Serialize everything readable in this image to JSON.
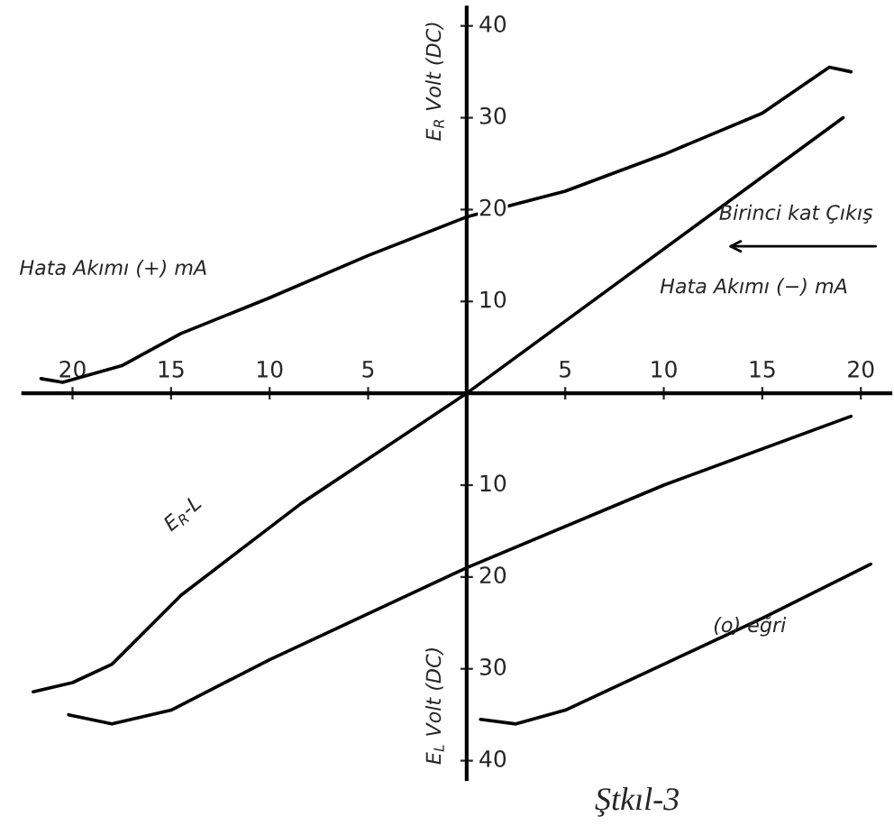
{
  "chart_data": {
    "type": "line",
    "ylabel": "E$_{R}$ Volt (DC)",
    "xlim": [
      -22.5,
      21.5
    ],
    "ylim": [
      -42,
      42
    ],
    "xticks": [
      {
        "value": -20,
        "label": "20"
      },
      {
        "value": -15,
        "label": "15"
      },
      {
        "value": -10,
        "label": "10"
      },
      {
        "value": -5,
        "label": "5"
      },
      5,
      10,
      15,
      20
    ],
    "yticks": [
      {
        "value": -40,
        "label": "40"
      },
      {
        "value": -30,
        "label": "30"
      },
      {
        "value": -20,
        "label": "20"
      },
      {
        "value": -10,
        "label": "10"
      },
      10,
      20,
      30,
      40
    ],
    "series": [
      {
        "color": "#000000",
        "x": [
          -21.6,
          -20.5,
          -17.5,
          -14.5,
          -10,
          -5,
          0,
          5,
          10,
          15,
          18.4,
          19.5
        ],
        "values": [
          1.6,
          1.2,
          3,
          6.5,
          10.4,
          15,
          19.2,
          22,
          26,
          30.5,
          35.5,
          35
        ]
      },
      {
        "name": "E$_{R}$-L",
        "color": "#000000",
        "x": [
          -22,
          -20,
          -18,
          -14.5,
          -8.4,
          0,
          19.1
        ],
        "values": [
          -32.5,
          -31.5,
          -29.5,
          -22,
          -12,
          0,
          30
        ]
      },
      {
        "color": "#000000",
        "x": [
          -20.2,
          -18,
          -15,
          -10,
          0,
          10,
          19.5
        ],
        "values": [
          -35,
          -36,
          -34.5,
          -29,
          -19,
          -10,
          -2.5
        ]
      },
      {
        "name": "(o) eğri",
        "color": "#000000",
        "x": [
          0.7,
          2.5,
          5,
          10,
          15,
          20.5
        ],
        "values": [
          -35.5,
          -36,
          -34.5,
          -29.5,
          -24.5,
          -18.6
        ]
      }
    ],
    "annotations": [
      "Hata Akımı (+) mA",
      "Hata Akımı (−) mA",
      "Birinci kat Çıkış",
      "E$_{L}$ Volt (DC)",
      "Ştkıl-3"
    ],
    "legend": false,
    "grid": false
  }
}
